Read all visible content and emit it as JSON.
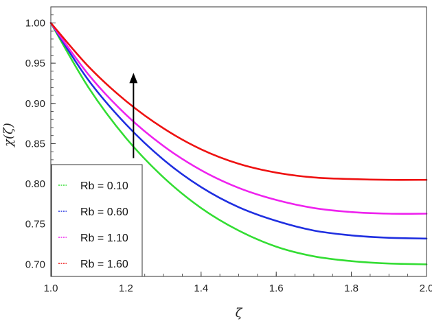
{
  "chart_data": {
    "type": "line",
    "title": "",
    "xlabel": "ζ",
    "ylabel": "χ(ζ)",
    "xlim": [
      1.0,
      2.0
    ],
    "ylim": [
      0.685,
      1.02
    ],
    "x_ticks": [
      1.0,
      1.2,
      1.4,
      1.6,
      1.8,
      2.0
    ],
    "x_tick_labels": [
      "1.0",
      "1.2",
      "1.4",
      "1.6",
      "1.8",
      "2.0"
    ],
    "y_ticks": [
      0.7,
      0.75,
      0.8,
      0.85,
      0.9,
      0.95,
      1.0
    ],
    "y_tick_labels": [
      "0.70",
      "0.75",
      "0.80",
      "0.85",
      "0.90",
      "0.95",
      "1.00"
    ],
    "grid": false,
    "legend_position": "bottom-left",
    "x": [
      1.0,
      1.1,
      1.2,
      1.3,
      1.4,
      1.5,
      1.6,
      1.7,
      1.8,
      1.9,
      2.0
    ],
    "series": [
      {
        "name": "Rb = 0.10",
        "color": "#33dd33",
        "values": [
          1.0,
          0.92,
          0.857,
          0.808,
          0.77,
          0.742,
          0.722,
          0.71,
          0.704,
          0.701,
          0.7
        ]
      },
      {
        "name": "Rb = 0.60",
        "color": "#1f2fe0",
        "values": [
          1.0,
          0.929,
          0.874,
          0.83,
          0.796,
          0.771,
          0.754,
          0.742,
          0.736,
          0.733,
          0.732
        ]
      },
      {
        "name": "Rb = 1.10",
        "color": "#ee22ee",
        "values": [
          1.0,
          0.936,
          0.886,
          0.847,
          0.817,
          0.795,
          0.78,
          0.77,
          0.765,
          0.763,
          0.763
        ]
      },
      {
        "name": "Rb = 1.60",
        "color": "#ee1111",
        "values": [
          1.0,
          0.946,
          0.903,
          0.869,
          0.843,
          0.825,
          0.814,
          0.808,
          0.806,
          0.805,
          0.805
        ]
      }
    ],
    "annotation": {
      "type": "arrow",
      "x": 1.22,
      "y_from": 0.832,
      "y_to": 0.938,
      "color": "#000000"
    }
  }
}
